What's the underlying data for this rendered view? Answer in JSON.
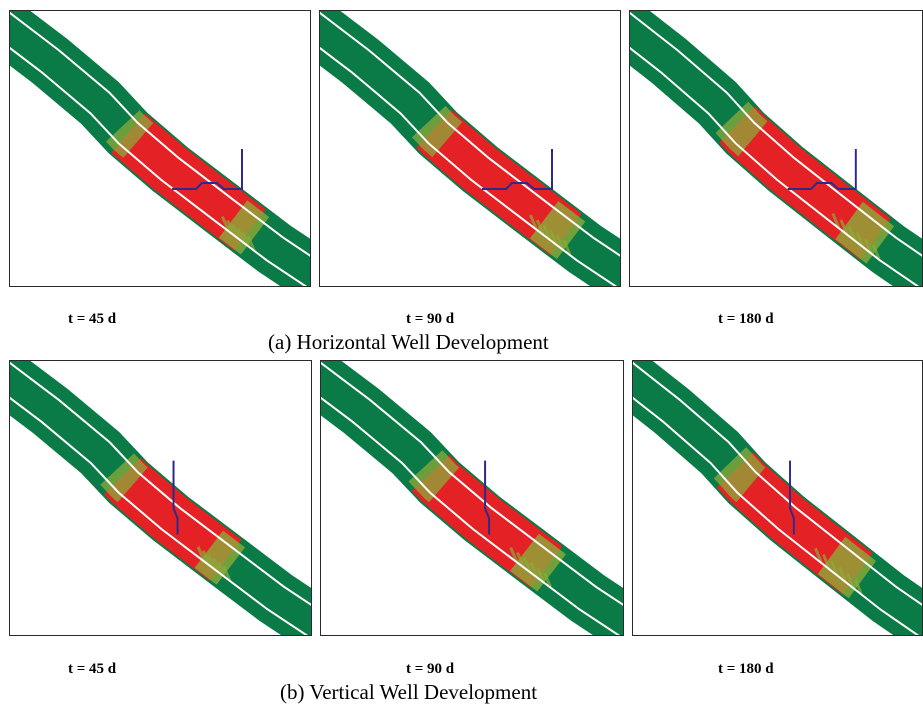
{
  "rows": [
    {
      "caption": "(a) Horizontal Well Development",
      "well_type": "horizontal",
      "panels": [
        {
          "time_label": "t = 45 d",
          "front_growth": 0.0
        },
        {
          "time_label": "t = 90 d",
          "front_growth": 0.5
        },
        {
          "time_label": "t = 180 d",
          "front_growth": 1.0
        }
      ]
    },
    {
      "caption": "(b) Vertical Well Development",
      "well_type": "vertical",
      "panels": [
        {
          "time_label": "t = 45 d",
          "front_growth": 0.0
        },
        {
          "time_label": "t = 90 d",
          "front_growth": 0.5
        },
        {
          "time_label": "t = 180 d",
          "front_growth": 1.0
        }
      ]
    }
  ],
  "colors": {
    "formation": "#0a7a46",
    "boundary_line": "#ffffff",
    "hot_zone": "#f01c24",
    "transition_zone": "#8cab3a",
    "well": "#2e2a8a",
    "frame": "#2a2a2a"
  }
}
